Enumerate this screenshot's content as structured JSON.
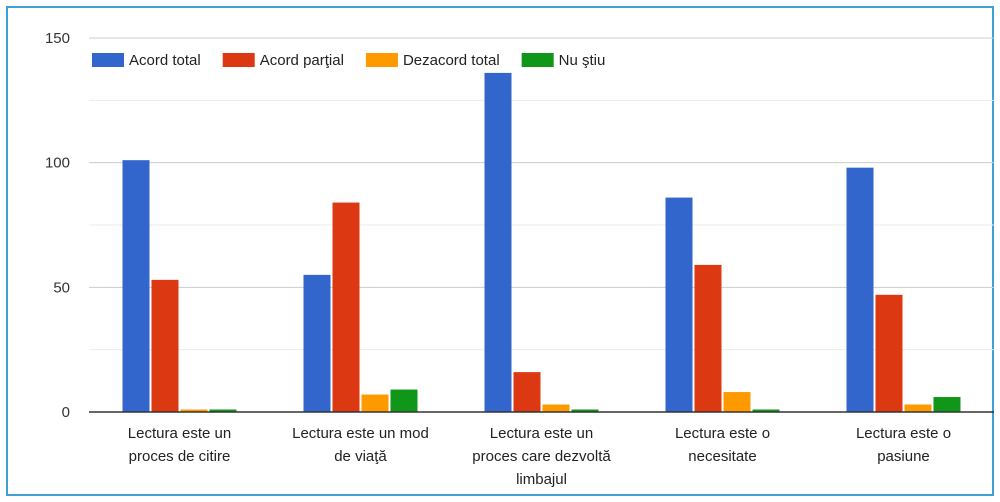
{
  "chart_data": {
    "type": "bar",
    "categories": [
      [
        "Lectura este un",
        "proces de citire"
      ],
      [
        "Lectura este un mod",
        "de viaţă"
      ],
      [
        "Lectura este un",
        "proces care dezvoltă",
        "limbajul"
      ],
      [
        "Lectura este o",
        "necesitate"
      ],
      [
        "Lectura este o",
        "pasiune"
      ]
    ],
    "series": [
      {
        "name": "Acord total",
        "color": "#3366cc",
        "values": [
          101,
          55,
          136,
          86,
          98
        ]
      },
      {
        "name": "Acord parţial",
        "color": "#dc3912",
        "values": [
          53,
          84,
          16,
          59,
          47
        ]
      },
      {
        "name": "Dezacord total",
        "color": "#ff9900",
        "values": [
          1,
          7,
          3,
          8,
          3
        ]
      },
      {
        "name": "Nu ştiu",
        "color": "#109618",
        "values": [
          1,
          9,
          1,
          1,
          6
        ]
      }
    ],
    "yticks": [
      0,
      50,
      100,
      150
    ],
    "ylim": [
      0,
      150
    ],
    "grid": true,
    "legend": "top"
  }
}
